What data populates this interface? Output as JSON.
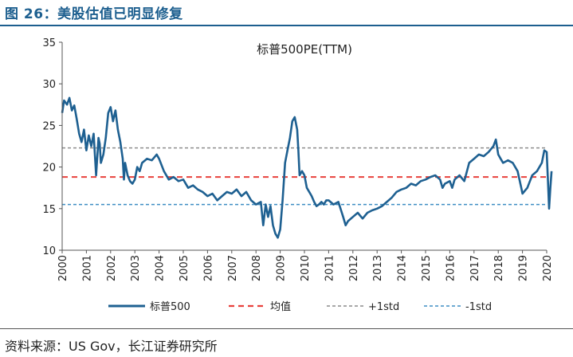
{
  "figure": {
    "title": "图 26：美股估值已明显修复",
    "source": "资料来源：US Gov，长江证券研究所"
  },
  "colors": {
    "accent": "#1d5f8f",
    "series": "#1e6091",
    "mean": "#e8413c",
    "plus_std": "#8c8c8c",
    "minus_std": "#3e8ec4"
  },
  "chart_data": {
    "type": "line",
    "title": "标普500PE(TTM)",
    "xlabel": "",
    "ylabel": "",
    "x_range": [
      2000.0,
      2020.0
    ],
    "ylim": [
      10,
      35
    ],
    "y_ticks": [
      10,
      15,
      20,
      25,
      30,
      35
    ],
    "x_ticks": [
      "2000",
      "2001",
      "2002",
      "2003",
      "2004",
      "2005",
      "2006",
      "2007",
      "2008",
      "2009",
      "2010",
      "2011",
      "2012",
      "2013",
      "2014",
      "2015",
      "2016",
      "2017",
      "2018",
      "2019",
      "2020"
    ],
    "legend": [
      "标普500",
      "均值",
      "+1std",
      "-1std"
    ],
    "series": [
      {
        "name": "标普500",
        "style": "solid",
        "x": [
          2000.0,
          2000.08,
          2000.2,
          2000.3,
          2000.4,
          2000.5,
          2000.6,
          2000.7,
          2000.8,
          2000.9,
          2001.0,
          2001.1,
          2001.2,
          2001.3,
          2001.4,
          2001.5,
          2001.55,
          2001.6,
          2001.7,
          2001.8,
          2001.9,
          2002.0,
          2002.1,
          2002.2,
          2002.3,
          2002.4,
          2002.5,
          2002.55,
          2002.6,
          2002.7,
          2002.8,
          2002.9,
          2003.0,
          2003.1,
          2003.2,
          2003.3,
          2003.5,
          2003.7,
          2003.9,
          2004.0,
          2004.2,
          2004.4,
          2004.6,
          2004.8,
          2005.0,
          2005.2,
          2005.4,
          2005.6,
          2005.8,
          2006.0,
          2006.2,
          2006.4,
          2006.6,
          2006.8,
          2007.0,
          2007.2,
          2007.4,
          2007.6,
          2007.8,
          2008.0,
          2008.2,
          2008.3,
          2008.4,
          2008.5,
          2008.6,
          2008.7,
          2008.8,
          2008.9,
          2009.0,
          2009.1,
          2009.2,
          2009.3,
          2009.4,
          2009.5,
          2009.6,
          2009.7,
          2009.75,
          2009.8,
          2009.9,
          2010.0,
          2010.1,
          2010.2,
          2010.3,
          2010.4,
          2010.5,
          2010.6,
          2010.7,
          2010.8,
          2010.9,
          2011.0,
          2011.2,
          2011.4,
          2011.6,
          2011.7,
          2011.8,
          2012.0,
          2012.2,
          2012.4,
          2012.6,
          2012.8,
          2013.0,
          2013.2,
          2013.4,
          2013.6,
          2013.8,
          2014.0,
          2014.2,
          2014.4,
          2014.6,
          2014.8,
          2015.0,
          2015.2,
          2015.4,
          2015.6,
          2015.7,
          2015.8,
          2016.0,
          2016.1,
          2016.2,
          2016.4,
          2016.6,
          2016.8,
          2017.0,
          2017.2,
          2017.4,
          2017.6,
          2017.8,
          2017.9,
          2018.0,
          2018.1,
          2018.2,
          2018.4,
          2018.6,
          2018.8,
          2018.95,
          2019.0,
          2019.2,
          2019.4,
          2019.6,
          2019.8,
          2019.9,
          2020.0,
          2020.05,
          2020.1,
          2020.15,
          2020.2
        ],
        "y": [
          26.5,
          28.0,
          27.5,
          28.3,
          26.8,
          27.4,
          25.8,
          24.0,
          23.0,
          24.5,
          22.0,
          23.8,
          22.5,
          24.0,
          19.0,
          23.5,
          22.8,
          20.5,
          21.5,
          23.5,
          26.5,
          27.2,
          25.5,
          26.8,
          24.5,
          23.0,
          21.0,
          18.5,
          20.5,
          19.0,
          18.3,
          18.0,
          18.5,
          20.0,
          19.5,
          20.5,
          21.0,
          20.8,
          21.5,
          21.0,
          19.5,
          18.5,
          18.8,
          18.3,
          18.5,
          17.5,
          17.8,
          17.3,
          17.0,
          16.5,
          16.8,
          16.0,
          16.5,
          17.0,
          16.8,
          17.3,
          16.5,
          17.0,
          16.0,
          15.5,
          15.8,
          13.0,
          15.5,
          14.0,
          15.3,
          13.0,
          12.0,
          11.5,
          12.5,
          16.0,
          20.5,
          22.0,
          23.5,
          25.5,
          26.0,
          24.5,
          22.0,
          19.0,
          19.5,
          19.0,
          17.5,
          17.0,
          16.5,
          15.8,
          15.3,
          15.5,
          15.8,
          15.5,
          16.0,
          16.0,
          15.5,
          15.8,
          14.0,
          13.0,
          13.5,
          14.0,
          14.5,
          13.8,
          14.5,
          14.8,
          15.0,
          15.3,
          15.8,
          16.3,
          17.0,
          17.3,
          17.5,
          18.0,
          17.8,
          18.3,
          18.5,
          18.8,
          19.0,
          18.5,
          17.5,
          18.0,
          18.3,
          17.5,
          18.5,
          19.0,
          18.3,
          20.5,
          21.0,
          21.5,
          21.3,
          21.8,
          22.5,
          23.3,
          21.5,
          21.0,
          20.5,
          20.8,
          20.5,
          19.5,
          17.5,
          16.8,
          17.5,
          19.0,
          19.5,
          20.5,
          22.0,
          21.8,
          18.5,
          15.0,
          17.5,
          19.5
        ]
      },
      {
        "name": "均值",
        "style": "dashed",
        "value": 18.8
      },
      {
        "name": "+1std",
        "style": "dashed",
        "value": 22.3
      },
      {
        "name": "-1std",
        "style": "dashed",
        "value": 15.5
      }
    ]
  }
}
